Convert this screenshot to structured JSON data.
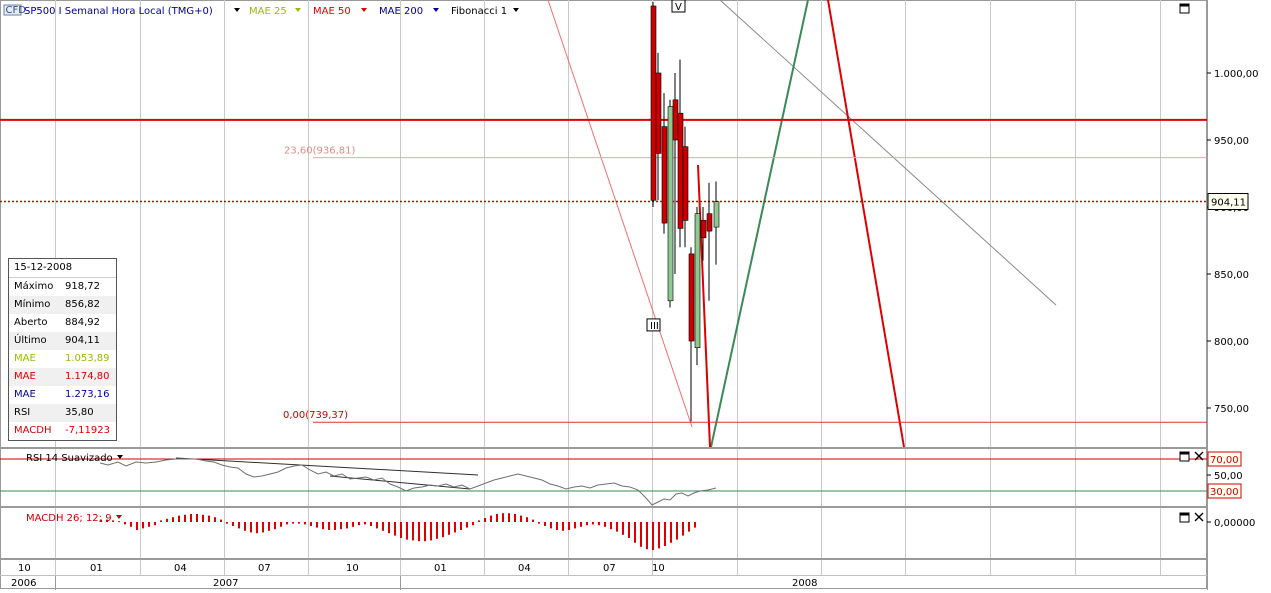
{
  "header": {
    "badge": "CFD",
    "title": "SP500 I Semanal Hora Local (TMG+0)",
    "indicators": [
      {
        "label": "MAE 25",
        "color": "#99bb00"
      },
      {
        "label": "MAE 50",
        "color": "#dd0000"
      },
      {
        "label": "MAE 200",
        "color": "#000099"
      },
      {
        "label": "Fibonacci 1",
        "color": "#000000"
      }
    ]
  },
  "chart_data": [
    {
      "type": "candlestick",
      "name": "SP500 I",
      "price_axis": {
        "ticks": [
          "1.000,00",
          "950,00",
          "900,00",
          "850,00",
          "800,00",
          "750,00"
        ],
        "tick_values": [
          1000,
          950,
          900,
          850,
          800,
          750
        ],
        "range": [
          727,
          1053
        ]
      },
      "current_price": {
        "label": "904,11",
        "value": 904.11
      },
      "horizontal_levels": [
        {
          "value": 965,
          "color": "#dd0000",
          "style": "solid"
        },
        {
          "value": 904.11,
          "color": "#cc0000",
          "style": "dotted"
        }
      ],
      "fibonacci": [
        {
          "label": "23,60(936,81)",
          "value": 936.81
        },
        {
          "label": "0,00(739,37)",
          "value": 739.37
        }
      ],
      "markers": [
        {
          "text": "III",
          "x": 653,
          "price": 812
        },
        {
          "text": "V",
          "x": 678,
          "price": 1050
        }
      ],
      "candles": [
        {
          "x": 653,
          "open": 1050,
          "close": 905,
          "high": 1053,
          "low": 900
        },
        {
          "x": 658,
          "open": 1000,
          "close": 940,
          "high": 1015,
          "low": 905
        },
        {
          "x": 664,
          "open": 960,
          "close": 888,
          "high": 985,
          "low": 880
        },
        {
          "x": 670,
          "open": 830,
          "close": 975,
          "high": 980,
          "low": 825
        },
        {
          "x": 675,
          "open": 980,
          "close": 950,
          "high": 1000,
          "low": 850
        },
        {
          "x": 680,
          "open": 970,
          "close": 884,
          "high": 1010,
          "low": 870
        },
        {
          "x": 685,
          "open": 945,
          "close": 890,
          "high": 960,
          "low": 870
        },
        {
          "x": 691,
          "open": 865,
          "close": 800,
          "high": 870,
          "low": 740
        },
        {
          "x": 697,
          "open": 795,
          "close": 895,
          "high": 900,
          "low": 782
        },
        {
          "x": 703,
          "open": 890,
          "close": 877,
          "high": 900,
          "low": 860
        },
        {
          "x": 709,
          "open": 895,
          "close": 882,
          "high": 918,
          "low": 830
        },
        {
          "x": 716,
          "open": 885,
          "close": 904,
          "high": 919,
          "low": 857
        }
      ]
    },
    {
      "type": "line",
      "name": "RSI 14 Suavizado",
      "levels": [
        {
          "label": "70,00",
          "value": 70
        },
        {
          "label": "30,00",
          "value": 30
        }
      ],
      "axis_tick": {
        "label": "50,00",
        "value": 50
      },
      "series_points": [
        [
          100,
          463
        ],
        [
          108,
          465
        ],
        [
          118,
          462
        ],
        [
          126,
          466
        ],
        [
          136,
          462
        ],
        [
          146,
          463
        ],
        [
          156,
          462
        ],
        [
          166,
          460
        ],
        [
          176,
          459
        ],
        [
          186,
          459
        ],
        [
          196,
          459
        ],
        [
          206,
          461
        ],
        [
          214,
          462
        ],
        [
          222,
          465
        ],
        [
          230,
          467
        ],
        [
          238,
          468
        ],
        [
          246,
          474
        ],
        [
          254,
          477
        ],
        [
          262,
          476
        ],
        [
          270,
          474
        ],
        [
          278,
          472
        ],
        [
          286,
          468
        ],
        [
          294,
          466
        ],
        [
          302,
          465
        ],
        [
          310,
          470
        ],
        [
          318,
          474
        ],
        [
          326,
          472
        ],
        [
          334,
          476
        ],
        [
          342,
          474
        ],
        [
          350,
          479
        ],
        [
          358,
          478
        ],
        [
          366,
          477
        ],
        [
          374,
          480
        ],
        [
          382,
          478
        ],
        [
          390,
          484
        ],
        [
          398,
          487
        ],
        [
          406,
          491
        ],
        [
          414,
          488
        ],
        [
          422,
          487
        ],
        [
          430,
          485
        ],
        [
          438,
          486
        ],
        [
          446,
          484
        ],
        [
          454,
          487
        ],
        [
          462,
          485
        ],
        [
          470,
          489
        ],
        [
          478,
          486
        ],
        [
          486,
          483
        ],
        [
          494,
          480
        ],
        [
          502,
          478
        ],
        [
          510,
          476
        ],
        [
          518,
          474
        ],
        [
          526,
          476
        ],
        [
          534,
          478
        ],
        [
          542,
          480
        ],
        [
          550,
          484
        ],
        [
          558,
          486
        ],
        [
          566,
          489
        ],
        [
          574,
          487
        ],
        [
          582,
          486
        ],
        [
          590,
          488
        ],
        [
          598,
          485
        ],
        [
          606,
          484
        ],
        [
          614,
          483
        ],
        [
          622,
          486
        ],
        [
          630,
          487
        ],
        [
          638,
          490
        ],
        [
          646,
          498
        ],
        [
          652,
          505
        ],
        [
          658,
          502
        ],
        [
          664,
          499
        ],
        [
          670,
          500
        ],
        [
          676,
          494
        ],
        [
          682,
          493
        ],
        [
          688,
          496
        ],
        [
          694,
          493
        ],
        [
          700,
          491
        ],
        [
          708,
          490
        ],
        [
          716,
          488
        ]
      ]
    },
    {
      "type": "bar",
      "name": "MACDH 26; 12; 9",
      "axis_tick": {
        "label": "0,00000",
        "value": 0
      },
      "bar_x_start": 100,
      "bar_spacing": 6,
      "values": [
        0.3,
        0.3,
        0.2,
        0.1,
        -0.3,
        -0.6,
        -1.0,
        -0.8,
        -0.6,
        -0.4,
        0.2,
        0.4,
        0.6,
        0.8,
        0.9,
        1.0,
        1.0,
        0.9,
        0.8,
        0.6,
        0.3,
        -0.2,
        -0.5,
        -0.8,
        -1.1,
        -1.3,
        -1.4,
        -1.3,
        -1.1,
        -0.9,
        -0.6,
        -0.3,
        -0.2,
        -0.2,
        -0.3,
        -0.5,
        -0.7,
        -0.9,
        -1.0,
        -1.0,
        -0.9,
        -0.8,
        -0.6,
        -0.4,
        -0.3,
        -0.5,
        -0.8,
        -1.1,
        -1.4,
        -1.7,
        -2.0,
        -2.2,
        -2.3,
        -2.4,
        -2.4,
        -2.3,
        -2.1,
        -1.9,
        -1.6,
        -1.3,
        -1.0,
        -0.7,
        -0.4,
        0.2,
        0.5,
        0.8,
        1.0,
        1.1,
        1.1,
        1.0,
        0.8,
        0.6,
        0.3,
        -0.2,
        -0.5,
        -0.8,
        -1.0,
        -1.1,
        -1.0,
        -0.8,
        -0.6,
        -0.4,
        -0.3,
        -0.4,
        -0.6,
        -0.9,
        -1.2,
        -1.6,
        -2.0,
        -2.6,
        -3.1,
        -3.4,
        -3.5,
        -3.3,
        -3.0,
        -2.6,
        -2.2,
        -1.7,
        -1.2,
        -0.7
      ]
    }
  ],
  "time_axis": {
    "months": [
      "10",
      "01",
      "04",
      "07",
      "10",
      "01",
      "04",
      "07",
      "10"
    ],
    "years": [
      "2006",
      "2007",
      "2008"
    ]
  },
  "infobox": {
    "date": "15-12-2008",
    "rows": [
      {
        "key": "Máximo",
        "value": "918,72",
        "color": "#000000"
      },
      {
        "key": "Mínimo",
        "value": "856,82",
        "color": "#000000"
      },
      {
        "key": "Aberto",
        "value": "884,92",
        "color": "#000000"
      },
      {
        "key": "Último",
        "value": "904,11",
        "color": "#000000"
      },
      {
        "key": "MAE",
        "value": "1.053,89",
        "color": "#99bb00"
      },
      {
        "key": "MAE",
        "value": "1.174,80",
        "color": "#dd0000"
      },
      {
        "key": "MAE",
        "value": "1.273,16",
        "color": "#000099"
      },
      {
        "key": "RSI",
        "value": "35,80",
        "color": "#000000"
      },
      {
        "key": "MACDH",
        "value": "-7,11923",
        "color": "#dd0000"
      }
    ]
  },
  "colors": {
    "up": "#8fc98f",
    "down": "#cc0000",
    "grid": "#c8c8c8",
    "tag_border": "#000000"
  }
}
